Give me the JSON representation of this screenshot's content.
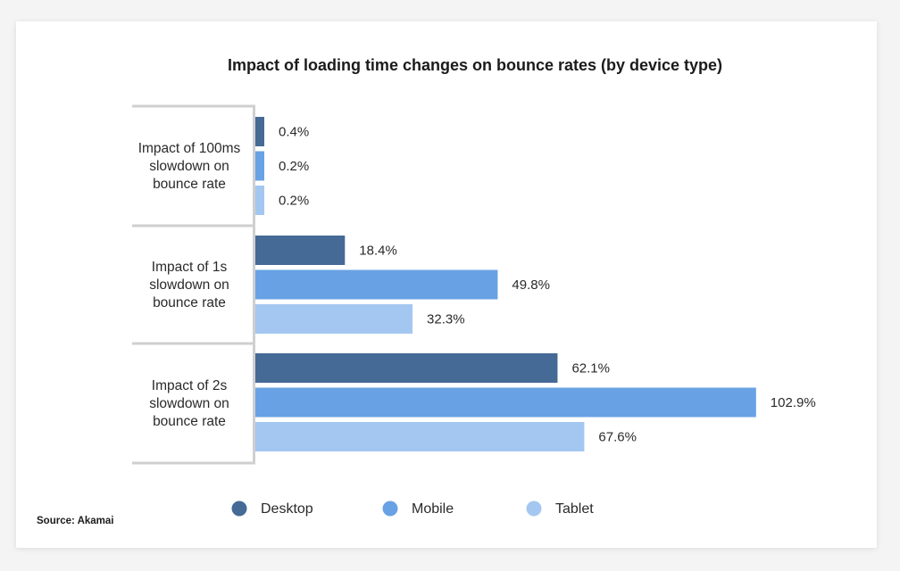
{
  "chart_data": {
    "type": "bar",
    "orientation": "horizontal",
    "title": "Impact of loading time changes on bounce rates (by device type)",
    "categories": [
      [
        "Impact of 100ms",
        "slowdown on",
        "bounce rate"
      ],
      [
        "Impact of 1s",
        "slowdown on",
        "bounce rate"
      ],
      [
        "Impact of 2s",
        "slowdown on",
        "bounce rate"
      ]
    ],
    "series": [
      {
        "name": "Desktop",
        "color": "#456a96",
        "values": [
          0.4,
          18.4,
          62.1
        ],
        "labels": [
          "0.4%",
          "18.4%",
          "62.1%"
        ]
      },
      {
        "name": "Mobile",
        "color": "#68a2e4",
        "values": [
          0.2,
          49.8,
          102.9
        ],
        "labels": [
          "0.2%",
          "49.8%",
          "102.9%"
        ]
      },
      {
        "name": "Tablet",
        "color": "#a3c7f1",
        "values": [
          0.2,
          32.3,
          67.6
        ],
        "labels": [
          "0.2%",
          "32.3%",
          "67.6%"
        ]
      }
    ],
    "value_unit": "%",
    "grid": false,
    "legend_position": "bottom"
  },
  "source": "Source: Akamai"
}
